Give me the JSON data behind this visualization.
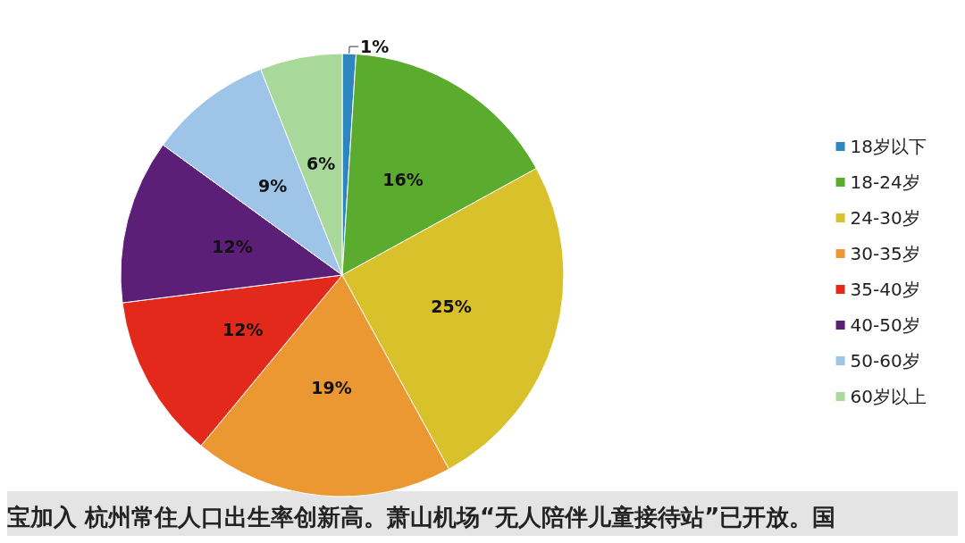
{
  "chart_data": {
    "type": "pie",
    "categories": [
      "18岁以下",
      "18-24岁",
      "24-30岁",
      "30-35岁",
      "35-40岁",
      "40-50岁",
      "50-60岁",
      "60岁以上"
    ],
    "values": [
      1,
      16,
      25,
      19,
      12,
      12,
      9,
      6
    ],
    "colors": [
      "#2e86c1",
      "#5aab2e",
      "#d8c12b",
      "#eb9833",
      "#e3291b",
      "#5b1f78",
      "#9ec4e8",
      "#a8d99a"
    ],
    "value_labels": [
      "1%",
      "16%",
      "25%",
      "19%",
      "12%",
      "12%",
      "9%",
      "6%"
    ],
    "legend": "right",
    "annotations": [
      "宝加入 杭州常住人口出生率创新高。萧山机场“无人陪伴儿童接待站”已开放。国"
    ]
  }
}
